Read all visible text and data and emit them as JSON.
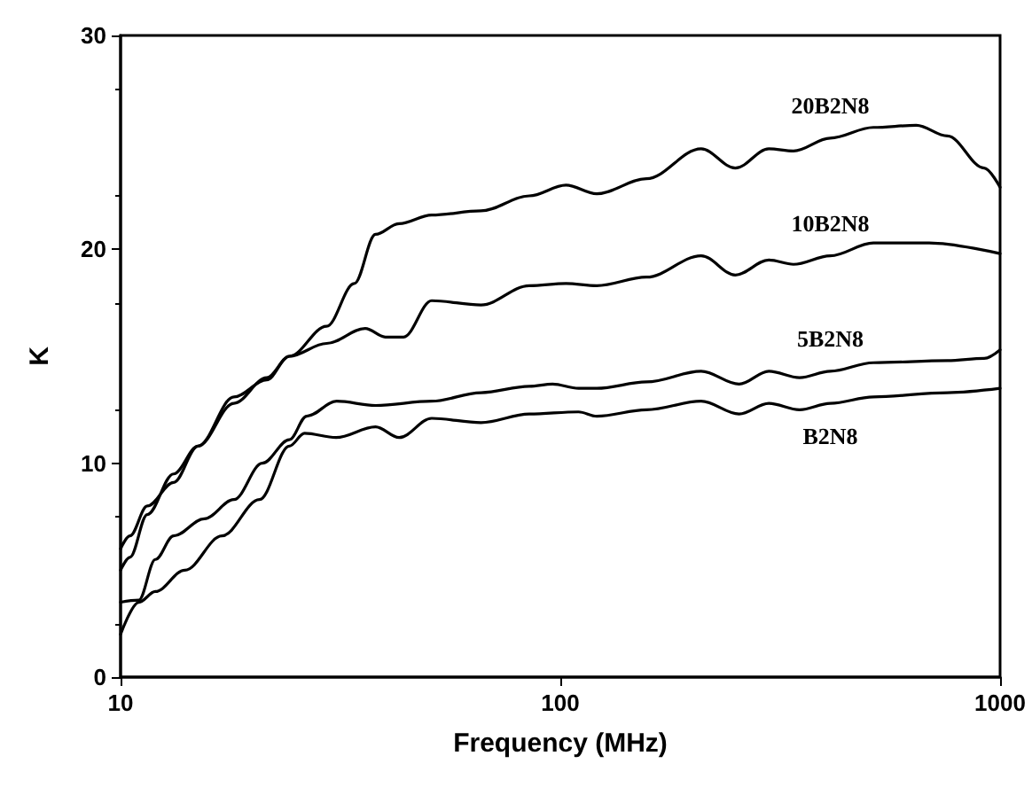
{
  "chart_data": {
    "type": "line",
    "xlabel": "Frequency (MHz)",
    "ylabel": "K",
    "log": "x",
    "xlim": [
      10,
      1000
    ],
    "xticks": [
      10,
      100,
      1000
    ],
    "ylim": [
      0,
      30
    ],
    "yticks": [
      0,
      10,
      20,
      30
    ],
    "grid": false,
    "legend": false,
    "marker": "none",
    "line_style": "solid",
    "series": [
      {
        "name": "20B2N8",
        "color": "#000000",
        "x": [
          10,
          10.5,
          11.5,
          13.2,
          15,
          18.1,
          21.5,
          24.2,
          29.4,
          34,
          38,
          43,
          51,
          66,
          85,
          103,
          121,
          157,
          209,
          250,
          298,
          339,
          411,
          515,
          645,
          759,
          920,
          1000
        ],
        "values": [
          6,
          6.6,
          8,
          9.1,
          10.8,
          13.1,
          13.9,
          15,
          16.4,
          18.4,
          20.7,
          21.2,
          21.6,
          21.8,
          22.5,
          23,
          22.6,
          23.3,
          24.7,
          23.8,
          24.7,
          24.6,
          25.2,
          25.7,
          25.8,
          25.3,
          23.8,
          22.9
        ]
      },
      {
        "name": "10B2N8",
        "color": "#000000",
        "x": [
          10,
          10.5,
          11.5,
          13.2,
          15,
          18.1,
          21.5,
          24.2,
          29.4,
          36,
          40,
          44,
          51,
          66,
          85,
          103,
          121,
          157,
          209,
          250,
          298,
          339,
          411,
          515,
          690,
          1000
        ],
        "values": [
          5,
          5.6,
          7.6,
          9.5,
          10.8,
          12.8,
          14,
          15,
          15.6,
          16.3,
          15.9,
          15.9,
          17.6,
          17.4,
          18.3,
          18.4,
          18.3,
          18.7,
          19.7,
          18.8,
          19.5,
          19.3,
          19.7,
          20.3,
          20.3,
          19.8
        ]
      },
      {
        "name": "5B2N8",
        "color": "#000000",
        "x": [
          10,
          11,
          12,
          13.2,
          15.5,
          18.1,
          21,
          24.2,
          26.5,
          31,
          38,
          51,
          66,
          85,
          96,
          110,
          121,
          157,
          209,
          255,
          298,
          350,
          411,
          515,
          759,
          920,
          1000
        ],
        "values": [
          3.5,
          3.6,
          5.5,
          6.6,
          7.4,
          8.3,
          10,
          11.1,
          12.2,
          12.9,
          12.7,
          12.9,
          13.3,
          13.6,
          13.7,
          13.5,
          13.5,
          13.8,
          14.3,
          13.7,
          14.3,
          14,
          14.3,
          14.7,
          14.8,
          14.9,
          15.3
        ]
      },
      {
        "name": "B2N8",
        "color": "#000000",
        "x": [
          10,
          11,
          12,
          14,
          17,
          20.7,
          24.2,
          26.2,
          30.9,
          38,
          43,
          51,
          66,
          85,
          110,
          121,
          157,
          209,
          255,
          298,
          350,
          411,
          515,
          759,
          1000
        ],
        "values": [
          2,
          3.5,
          4,
          5,
          6.6,
          8.3,
          10.8,
          11.4,
          11.2,
          11.7,
          11.2,
          12.1,
          11.9,
          12.3,
          12.4,
          12.2,
          12.5,
          12.9,
          12.3,
          12.8,
          12.5,
          12.8,
          13.1,
          13.3,
          13.5
        ]
      }
    ]
  }
}
